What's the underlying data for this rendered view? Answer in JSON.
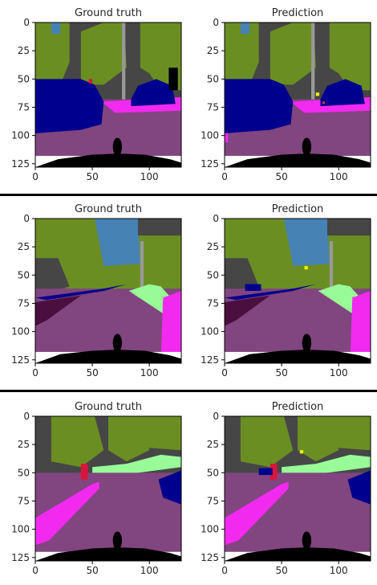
{
  "panel_titles": [
    "Ground truth",
    "Prediction"
  ],
  "axis": {
    "x_ticks": [
      "0",
      "50",
      "100"
    ],
    "y_ticks": [
      "0",
      "25",
      "50",
      "75",
      "100",
      "125"
    ]
  },
  "rows": [
    {
      "name": "row-1"
    },
    {
      "name": "row-2"
    },
    {
      "name": "row-3"
    }
  ],
  "colors": {
    "road": "#81457f",
    "sidewalk": "#f22af0",
    "vegetation": "#6b8e23",
    "building": "#464646",
    "sky": "#4682b4",
    "car": "#00008e",
    "terrain": "#98fb98",
    "pole": "#999999",
    "hood": "#000000",
    "person": "#dc143c"
  }
}
